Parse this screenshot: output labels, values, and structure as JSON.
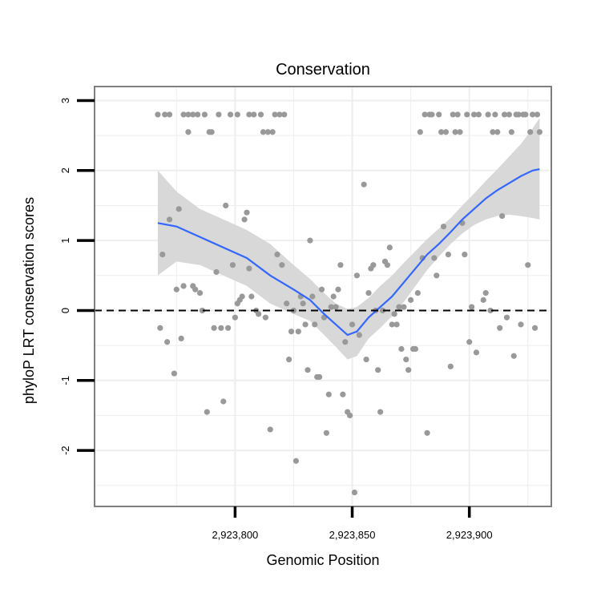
{
  "chart_data": {
    "type": "scatter",
    "title": "Conservation",
    "xlabel": "Genomic Position",
    "ylabel": "phyloP LRT conservation scores",
    "xlim": [
      2923740,
      2923935
    ],
    "ylim": [
      -2.8,
      3.2
    ],
    "x_ticks": [
      2923800,
      2923850,
      2923900
    ],
    "x_tick_labels": [
      "2,923,800",
      "2,923,850",
      "2,923,900"
    ],
    "y_ticks": [
      -2,
      -1,
      0,
      1,
      2,
      3
    ],
    "y_tick_labels": [
      "-2",
      "-1",
      "0",
      "1",
      "2",
      "3"
    ],
    "grid": true,
    "reference_line": {
      "y": 0,
      "style": "dashed"
    },
    "colors": {
      "points": "#999999",
      "smooth_line": "#3366ff",
      "ribbon": "#d6d6d6",
      "grid": "#eeeeee",
      "frame": "#7f7f7f",
      "ref_line": "#000000"
    },
    "points": [
      [
        2923767,
        2.8
      ],
      [
        2923768,
        -0.25
      ],
      [
        2923769,
        0.8
      ],
      [
        2923770,
        2.8
      ],
      [
        2923771,
        -0.45
      ],
      [
        2923772,
        1.3
      ],
      [
        2923772,
        2.8
      ],
      [
        2923774,
        -0.9
      ],
      [
        2923775,
        0.3
      ],
      [
        2923776,
        1.45
      ],
      [
        2923777,
        -0.4
      ],
      [
        2923778,
        0.35
      ],
      [
        2923778,
        2.8
      ],
      [
        2923780,
        2.8
      ],
      [
        2923780,
        2.55
      ],
      [
        2923782,
        2.8
      ],
      [
        2923782,
        0.35
      ],
      [
        2923783,
        0.3
      ],
      [
        2923784,
        2.8
      ],
      [
        2923785,
        0.25
      ],
      [
        2923786,
        0.0
      ],
      [
        2923787,
        2.8
      ],
      [
        2923788,
        -1.45
      ],
      [
        2923789,
        2.55
      ],
      [
        2923790,
        2.55
      ],
      [
        2923791,
        -0.25
      ],
      [
        2923792,
        0.55
      ],
      [
        2923793,
        2.8
      ],
      [
        2923794,
        -0.25
      ],
      [
        2923795,
        -1.3
      ],
      [
        2923796,
        1.5
      ],
      [
        2923797,
        -0.25
      ],
      [
        2923798,
        2.8
      ],
      [
        2923799,
        0.65
      ],
      [
        2923800,
        -0.1
      ],
      [
        2923801,
        2.8
      ],
      [
        2923801,
        0.1
      ],
      [
        2923802,
        0.15
      ],
      [
        2923803,
        0.2
      ],
      [
        2923804,
        1.3
      ],
      [
        2923805,
        1.4
      ],
      [
        2923806,
        0.6
      ],
      [
        2923806,
        2.8
      ],
      [
        2923807,
        0.2
      ],
      [
        2923808,
        2.8
      ],
      [
        2923809,
        0.0
      ],
      [
        2923810,
        -0.05
      ],
      [
        2923811,
        2.8
      ],
      [
        2923812,
        2.55
      ],
      [
        2923813,
        -0.1
      ],
      [
        2923814,
        2.55
      ],
      [
        2923815,
        -1.7
      ],
      [
        2923816,
        2.55
      ],
      [
        2923817,
        2.8
      ],
      [
        2923818,
        0.8
      ],
      [
        2923819,
        2.8
      ],
      [
        2923820,
        0.65
      ],
      [
        2923821,
        2.8
      ],
      [
        2923822,
        0.1
      ],
      [
        2923823,
        -0.7
      ],
      [
        2923824,
        -0.3
      ],
      [
        2923825,
        0.0
      ],
      [
        2923826,
        -2.15
      ],
      [
        2923827,
        -0.3
      ],
      [
        2923828,
        0.2
      ],
      [
        2923829,
        0.1
      ],
      [
        2923830,
        -0.2
      ],
      [
        2923831,
        -0.85
      ],
      [
        2923832,
        1.0
      ],
      [
        2923833,
        0.2
      ],
      [
        2923834,
        -0.2
      ],
      [
        2923835,
        -0.95
      ],
      [
        2923836,
        -0.95
      ],
      [
        2923837,
        0.3
      ],
      [
        2923838,
        -0.1
      ],
      [
        2923839,
        -1.75
      ],
      [
        2923840,
        -1.2
      ],
      [
        2923841,
        0.05
      ],
      [
        2923842,
        0.2
      ],
      [
        2923843,
        0.05
      ],
      [
        2923844,
        0.3
      ],
      [
        2923845,
        0.65
      ],
      [
        2923846,
        -1.2
      ],
      [
        2923847,
        -0.45
      ],
      [
        2923848,
        -1.45
      ],
      [
        2923849,
        -1.5
      ],
      [
        2923850,
        -0.2
      ],
      [
        2923851,
        -2.6
      ],
      [
        2923852,
        0.5
      ],
      [
        2923853,
        -0.35
      ],
      [
        2923855,
        1.8
      ],
      [
        2923856,
        -0.7
      ],
      [
        2923857,
        0.25
      ],
      [
        2923858,
        0.6
      ],
      [
        2923859,
        0.65
      ],
      [
        2923860,
        0.0
      ],
      [
        2923861,
        -0.85
      ],
      [
        2923862,
        -1.45
      ],
      [
        2923863,
        0.0
      ],
      [
        2923864,
        0.7
      ],
      [
        2923865,
        0.65
      ],
      [
        2923866,
        0.9
      ],
      [
        2923867,
        -0.2
      ],
      [
        2923868,
        -0.05
      ],
      [
        2923869,
        -0.2
      ],
      [
        2923870,
        0.05
      ],
      [
        2923871,
        -0.55
      ],
      [
        2923872,
        0.05
      ],
      [
        2923873,
        -0.7
      ],
      [
        2923874,
        -0.85
      ],
      [
        2923875,
        0.15
      ],
      [
        2923876,
        -0.55
      ],
      [
        2923877,
        -0.55
      ],
      [
        2923878,
        0.25
      ],
      [
        2923879,
        2.55
      ],
      [
        2923880,
        0.75
      ],
      [
        2923881,
        2.8
      ],
      [
        2923882,
        -1.75
      ],
      [
        2923883,
        2.8
      ],
      [
        2923884,
        2.8
      ],
      [
        2923885,
        0.75
      ],
      [
        2923886,
        0.5
      ],
      [
        2923887,
        2.8
      ],
      [
        2923888,
        2.55
      ],
      [
        2923889,
        1.2
      ],
      [
        2923890,
        2.55
      ],
      [
        2923891,
        0.8
      ],
      [
        2923892,
        -0.8
      ],
      [
        2923893,
        2.8
      ],
      [
        2923894,
        2.55
      ],
      [
        2923895,
        2.8
      ],
      [
        2923896,
        2.55
      ],
      [
        2923897,
        1.25
      ],
      [
        2923898,
        0.8
      ],
      [
        2923899,
        2.8
      ],
      [
        2923900,
        -0.45
      ],
      [
        2923901,
        0.05
      ],
      [
        2923902,
        2.8
      ],
      [
        2923903,
        -0.6
      ],
      [
        2923904,
        2.8
      ],
      [
        2923906,
        0.15
      ],
      [
        2923907,
        0.25
      ],
      [
        2923908,
        2.8
      ],
      [
        2923909,
        0.0
      ],
      [
        2923910,
        2.55
      ],
      [
        2923911,
        2.8
      ],
      [
        2923912,
        2.55
      ],
      [
        2923913,
        -0.25
      ],
      [
        2923914,
        1.35
      ],
      [
        2923915,
        2.8
      ],
      [
        2923916,
        -0.1
      ],
      [
        2923917,
        2.8
      ],
      [
        2923918,
        2.55
      ],
      [
        2923919,
        -0.65
      ],
      [
        2923920,
        2.8
      ],
      [
        2923921,
        2.8
      ],
      [
        2923922,
        -0.2
      ],
      [
        2923923,
        2.8
      ],
      [
        2923924,
        2.8
      ],
      [
        2923925,
        0.65
      ],
      [
        2923926,
        2.55
      ],
      [
        2923927,
        2.8
      ],
      [
        2923928,
        -0.25
      ],
      [
        2923929,
        2.8
      ],
      [
        2923930,
        2.55
      ]
    ],
    "smooth": [
      [
        2923767,
        1.25
      ],
      [
        2923775,
        1.2
      ],
      [
        2923785,
        1.05
      ],
      [
        2923795,
        0.9
      ],
      [
        2923805,
        0.75
      ],
      [
        2923815,
        0.5
      ],
      [
        2923825,
        0.3
      ],
      [
        2923832,
        0.15
      ],
      [
        2923838,
        -0.05
      ],
      [
        2923843,
        -0.2
      ],
      [
        2923848,
        -0.35
      ],
      [
        2923852,
        -0.3
      ],
      [
        2923857,
        -0.1
      ],
      [
        2923862,
        0.05
      ],
      [
        2923867,
        0.2
      ],
      [
        2923872,
        0.4
      ],
      [
        2923877,
        0.6
      ],
      [
        2923882,
        0.8
      ],
      [
        2923887,
        0.95
      ],
      [
        2923892,
        1.12
      ],
      [
        2923897,
        1.3
      ],
      [
        2923902,
        1.45
      ],
      [
        2923907,
        1.6
      ],
      [
        2923912,
        1.72
      ],
      [
        2923917,
        1.82
      ],
      [
        2923922,
        1.92
      ],
      [
        2923927,
        2.0
      ],
      [
        2923930,
        2.02
      ]
    ],
    "ribbon_upper": [
      [
        2923767,
        2.0
      ],
      [
        2923775,
        1.7
      ],
      [
        2923785,
        1.45
      ],
      [
        2923795,
        1.3
      ],
      [
        2923805,
        1.15
      ],
      [
        2923815,
        0.95
      ],
      [
        2923825,
        0.65
      ],
      [
        2923832,
        0.45
      ],
      [
        2923838,
        0.25
      ],
      [
        2923843,
        0.1
      ],
      [
        2923848,
        0.02
      ],
      [
        2923852,
        0.05
      ],
      [
        2923857,
        0.18
      ],
      [
        2923862,
        0.35
      ],
      [
        2923867,
        0.5
      ],
      [
        2923872,
        0.68
      ],
      [
        2923877,
        0.85
      ],
      [
        2923882,
        1.02
      ],
      [
        2923887,
        1.17
      ],
      [
        2923892,
        1.32
      ],
      [
        2923897,
        1.5
      ],
      [
        2923902,
        1.67
      ],
      [
        2923907,
        1.85
      ],
      [
        2923912,
        2.02
      ],
      [
        2923917,
        2.2
      ],
      [
        2923922,
        2.38
      ],
      [
        2923927,
        2.6
      ],
      [
        2923930,
        2.75
      ]
    ],
    "ribbon_lower": [
      [
        2923767,
        0.5
      ],
      [
        2923775,
        0.7
      ],
      [
        2923785,
        0.65
      ],
      [
        2923795,
        0.5
      ],
      [
        2923805,
        0.35
      ],
      [
        2923815,
        0.1
      ],
      [
        2923825,
        -0.05
      ],
      [
        2923832,
        -0.15
      ],
      [
        2923838,
        -0.35
      ],
      [
        2923843,
        -0.52
      ],
      [
        2923848,
        -0.7
      ],
      [
        2923852,
        -0.65
      ],
      [
        2923857,
        -0.4
      ],
      [
        2923862,
        -0.25
      ],
      [
        2923867,
        -0.08
      ],
      [
        2923872,
        0.12
      ],
      [
        2923877,
        0.35
      ],
      [
        2923882,
        0.58
      ],
      [
        2923887,
        0.77
      ],
      [
        2923892,
        0.95
      ],
      [
        2923897,
        1.1
      ],
      [
        2923902,
        1.22
      ],
      [
        2923907,
        1.3
      ],
      [
        2923912,
        1.35
      ],
      [
        2923917,
        1.37
      ],
      [
        2923922,
        1.35
      ],
      [
        2923927,
        1.32
      ],
      [
        2923930,
        1.3
      ]
    ]
  }
}
